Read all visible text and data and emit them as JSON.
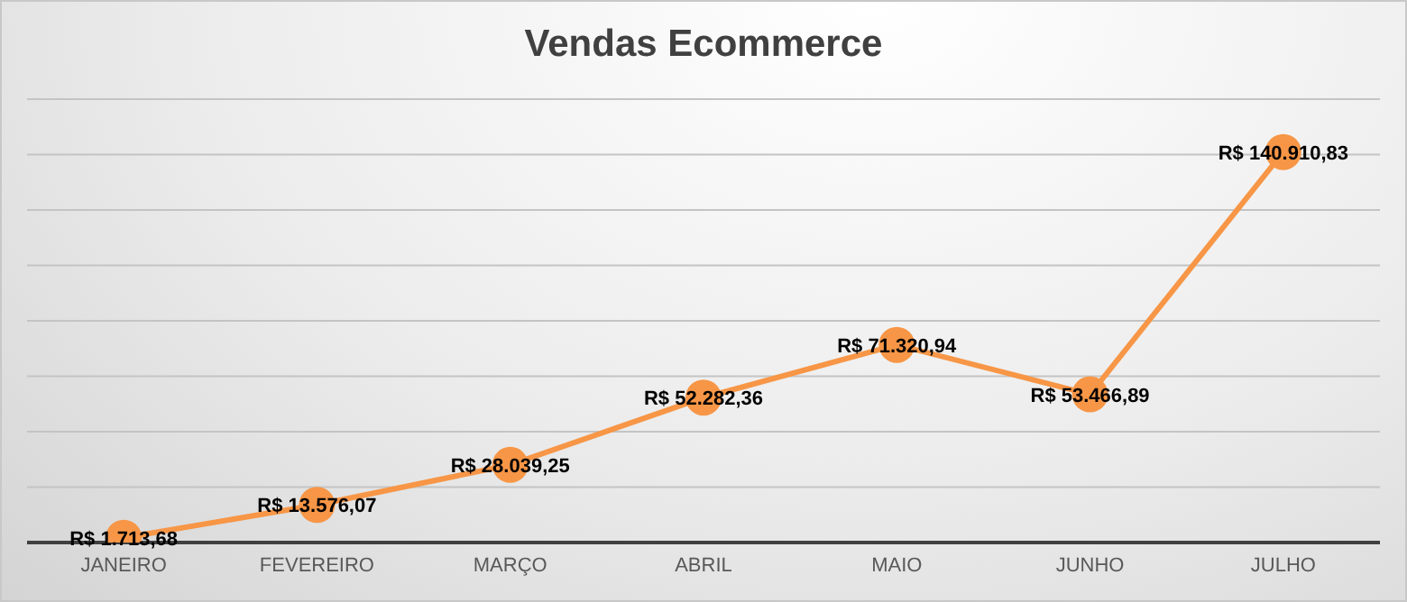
{
  "chart_data": {
    "type": "line",
    "title": "Vendas Ecommerce",
    "categories": [
      "JANEIRO",
      "FEVEREIRO",
      "MARÇO",
      "ABRIL",
      "MAIO",
      "JUNHO",
      "JULHO"
    ],
    "series": [
      {
        "color": "#f79646",
        "values": [
          1713.68,
          13576.07,
          28039.25,
          52282.36,
          71320.94,
          53466.89,
          140910.83
        ],
        "value_labels": [
          "R$ 1.713,68",
          "R$ 13.576,07",
          "R$ 28.039,25",
          "R$ 52.282,36",
          "R$ 71.320,94",
          "R$ 53.466,89",
          "R$ 140.910,83"
        ]
      }
    ],
    "ylim": [
      0,
      160000
    ],
    "yticks": [
      {
        "value": 0,
        "label": null
      },
      {
        "value": 20000,
        "label": null
      },
      {
        "value": 40000,
        "label": null
      },
      {
        "value": 60000,
        "label": null
      },
      {
        "value": 80000,
        "label": null
      },
      {
        "value": 100000,
        "label": null
      },
      {
        "value": 120000,
        "label": null
      },
      {
        "value": 140000,
        "label": null
      },
      {
        "value": 160000,
        "label": null
      }
    ],
    "tick_labels": "x",
    "grid": "y",
    "legend": false,
    "marker": "circle",
    "line_style": "solid"
  }
}
